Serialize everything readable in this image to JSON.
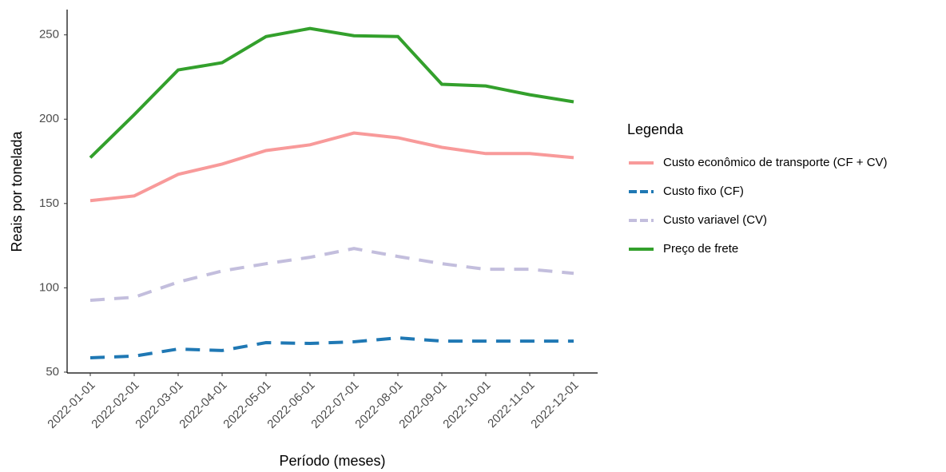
{
  "chart_data": {
    "type": "line",
    "x_label": "Período (meses)",
    "y_label": "Reais por tonelada",
    "categories": [
      "2022-01-01",
      "2022-02-01",
      "2022-03-01",
      "2022-04-01",
      "2022-05-01",
      "2022-06-01",
      "2022-07-01",
      "2022-08-01",
      "2022-09-01",
      "2022-10-01",
      "2022-11-01",
      "2022-12-01"
    ],
    "series": [
      {
        "name": "Custo econômico de transporte (CF + CV)",
        "color": "#f89a9a",
        "linestyle": "solid",
        "values": [
          151.7,
          154.5,
          167.3,
          173.4,
          181.4,
          184.8,
          191.8,
          189.0,
          183.3,
          179.6,
          179.6,
          177.2
        ]
      },
      {
        "name": "Custo fixo (CF)",
        "color": "#1f78b4",
        "linestyle": "dashed",
        "values": [
          58.5,
          59.5,
          63.7,
          62.8,
          67.5,
          67.0,
          68.0,
          70.3,
          68.4,
          68.4,
          68.4,
          68.4
        ]
      },
      {
        "name": "Custo variavel (CV)",
        "color": "#c3bedd",
        "linestyle": "dashed",
        "values": [
          92.6,
          94.4,
          103.4,
          110.0,
          114.3,
          118.1,
          123.3,
          118.6,
          114.3,
          111.0,
          111.0,
          108.6
        ]
      },
      {
        "name": "Preço de frete",
        "color": "#33a02c",
        "linestyle": "solid",
        "values": [
          177.2,
          202.7,
          229.2,
          233.5,
          249.0,
          253.8,
          249.5,
          249.0,
          220.7,
          219.7,
          214.5,
          210.3
        ]
      }
    ],
    "legend_title": "Legenda",
    "legend_position": "right",
    "ylim": [
      49.5,
      265
    ],
    "yticks": [
      50,
      100,
      150,
      200,
      250
    ],
    "grid": false
  }
}
